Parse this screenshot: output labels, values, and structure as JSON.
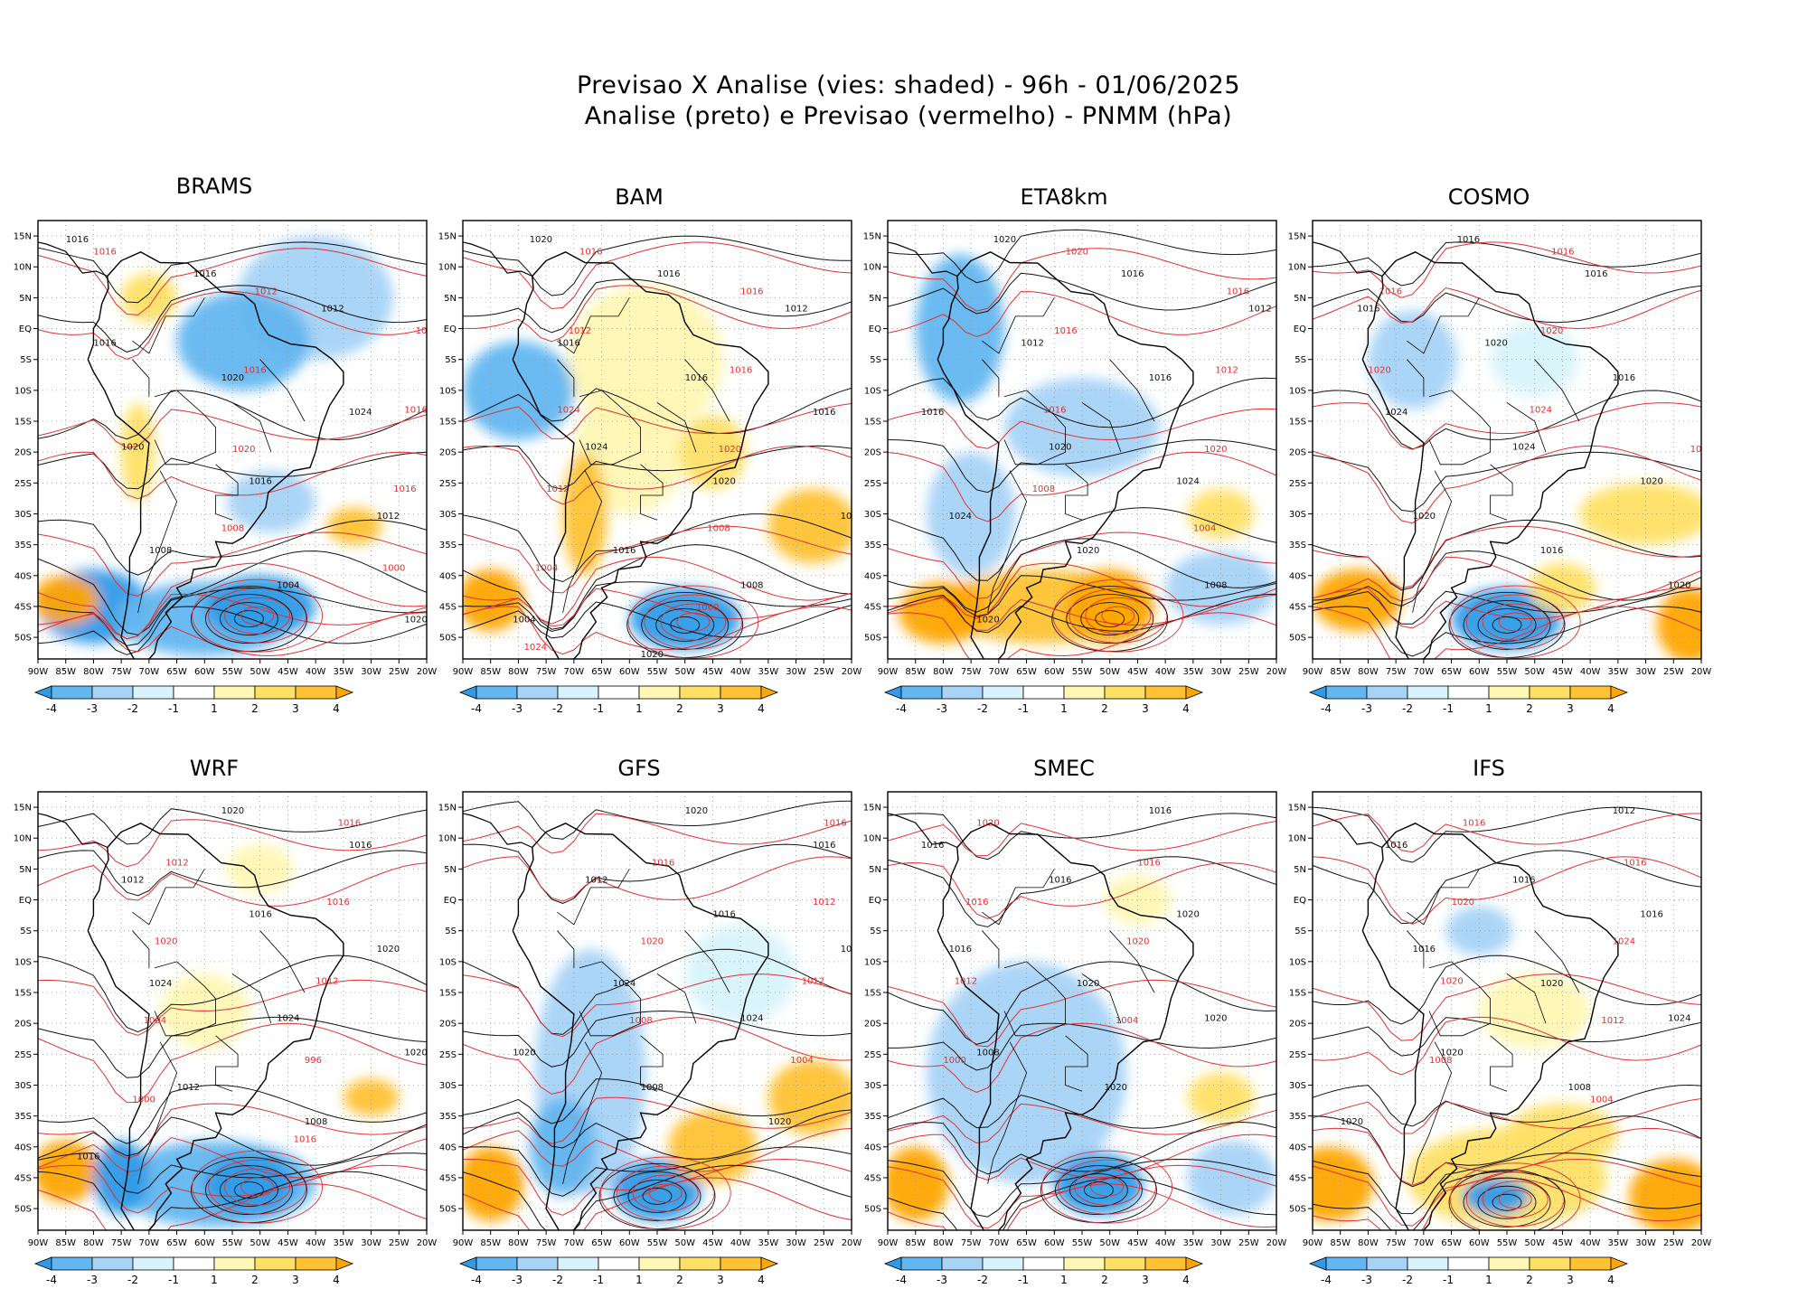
{
  "figure": {
    "title_line1": "Previsao X Analise (vies: shaded) - 96h - 01/06/2025",
    "title_line2": "Analise (preto) e Previsao (vermelho) - PNMM (hPa)"
  },
  "axes": {
    "lat_labels": [
      "15N",
      "10N",
      "5N",
      "EQ",
      "5S",
      "10S",
      "15S",
      "20S",
      "25S",
      "30S",
      "35S",
      "40S",
      "45S",
      "50S"
    ],
    "lon_labels": [
      "90W",
      "85W",
      "80W",
      "75W",
      "70W",
      "65W",
      "60W",
      "55W",
      "50W",
      "45W",
      "40W",
      "35W",
      "30W",
      "25W",
      "20W"
    ]
  },
  "colorbar": {
    "tick_labels": [
      "-4",
      "-3",
      "-2",
      "-1",
      "1",
      "2",
      "3",
      "4"
    ],
    "colors": [
      "#2f9be8",
      "#63b6f0",
      "#a7d3f7",
      "#d8f3fb",
      "#ffffff",
      "#fff7b3",
      "#ffe066",
      "#ffc233",
      "#ffa500"
    ]
  },
  "chart_data": {
    "type": "heatmap",
    "description_fields": {
      "shaded": "vies (bias, hPa)",
      "black_contours": "Analise",
      "red_contours": "Previsao"
    },
    "panels": [
      {
        "model": "BRAMS",
        "contour_labels_black": [
          "1016",
          "1016",
          "1012",
          "1016",
          "1020",
          "1024",
          "1020",
          "1016",
          "1012",
          "1008",
          "1004",
          "1020"
        ],
        "contour_labels_red": [
          "1016",
          "1012",
          "1012",
          "1016",
          "1016",
          "1020",
          "1016",
          "1008",
          "1000"
        ]
      },
      {
        "model": "BAM",
        "contour_labels_black": [
          "1020",
          "1016",
          "1012",
          "1016",
          "1016",
          "1016",
          "1024",
          "1020",
          "1020",
          "1016",
          "1008",
          "1004",
          "1020"
        ],
        "contour_labels_red": [
          "1016",
          "1016",
          "1012",
          "1016",
          "1024",
          "1020",
          "1012",
          "1008",
          "1004",
          "1000",
          "1024"
        ]
      },
      {
        "model": "ETA8km",
        "contour_labels_black": [
          "1020",
          "1016",
          "1012",
          "1012",
          "1016",
          "1016",
          "1020",
          "1024",
          "1024",
          "1020",
          "1008",
          "1020"
        ],
        "contour_labels_red": [
          "1020",
          "1016",
          "1016",
          "1012",
          "1016",
          "1020",
          "1008",
          "1004"
        ]
      },
      {
        "model": "COSMO",
        "contour_labels_black": [
          "1016",
          "1016",
          "1016",
          "1020",
          "1016",
          "1024",
          "1024",
          "1020",
          "1020",
          "1016",
          "1020"
        ],
        "contour_labels_red": [
          "1016",
          "1016",
          "1020",
          "1020",
          "1024",
          "1004"
        ]
      },
      {
        "model": "WRF",
        "contour_labels_black": [
          "1020",
          "1016",
          "1012",
          "1016",
          "1020",
          "1024",
          "1024",
          "1020",
          "1012",
          "1008",
          "1016"
        ],
        "contour_labels_red": [
          "1016",
          "1012",
          "1016",
          "1020",
          "1012",
          "1004",
          "996",
          "1000",
          "1016"
        ]
      },
      {
        "model": "GFS",
        "contour_labels_black": [
          "1020",
          "1016",
          "1012",
          "1016",
          "1020",
          "1024",
          "1024",
          "1020",
          "1008",
          "1020"
        ],
        "contour_labels_red": [
          "1016",
          "1016",
          "1012",
          "1020",
          "1012",
          "1008",
          "1004"
        ]
      },
      {
        "model": "SMEC",
        "contour_labels_black": [
          "1016",
          "1016",
          "1016",
          "1020",
          "1016",
          "1020",
          "1020",
          "1008",
          "1020"
        ],
        "contour_labels_red": [
          "1020",
          "1016",
          "1016",
          "1020",
          "1012",
          "1004",
          "1000"
        ]
      },
      {
        "model": "IFS",
        "contour_labels_black": [
          "1012",
          "1016",
          "1016",
          "1016",
          "1016",
          "1020",
          "1024",
          "1020",
          "1008",
          "1020"
        ],
        "contour_labels_red": [
          "1016",
          "1016",
          "1020",
          "1024",
          "1020",
          "1012",
          "1008",
          "1004"
        ]
      }
    ]
  }
}
